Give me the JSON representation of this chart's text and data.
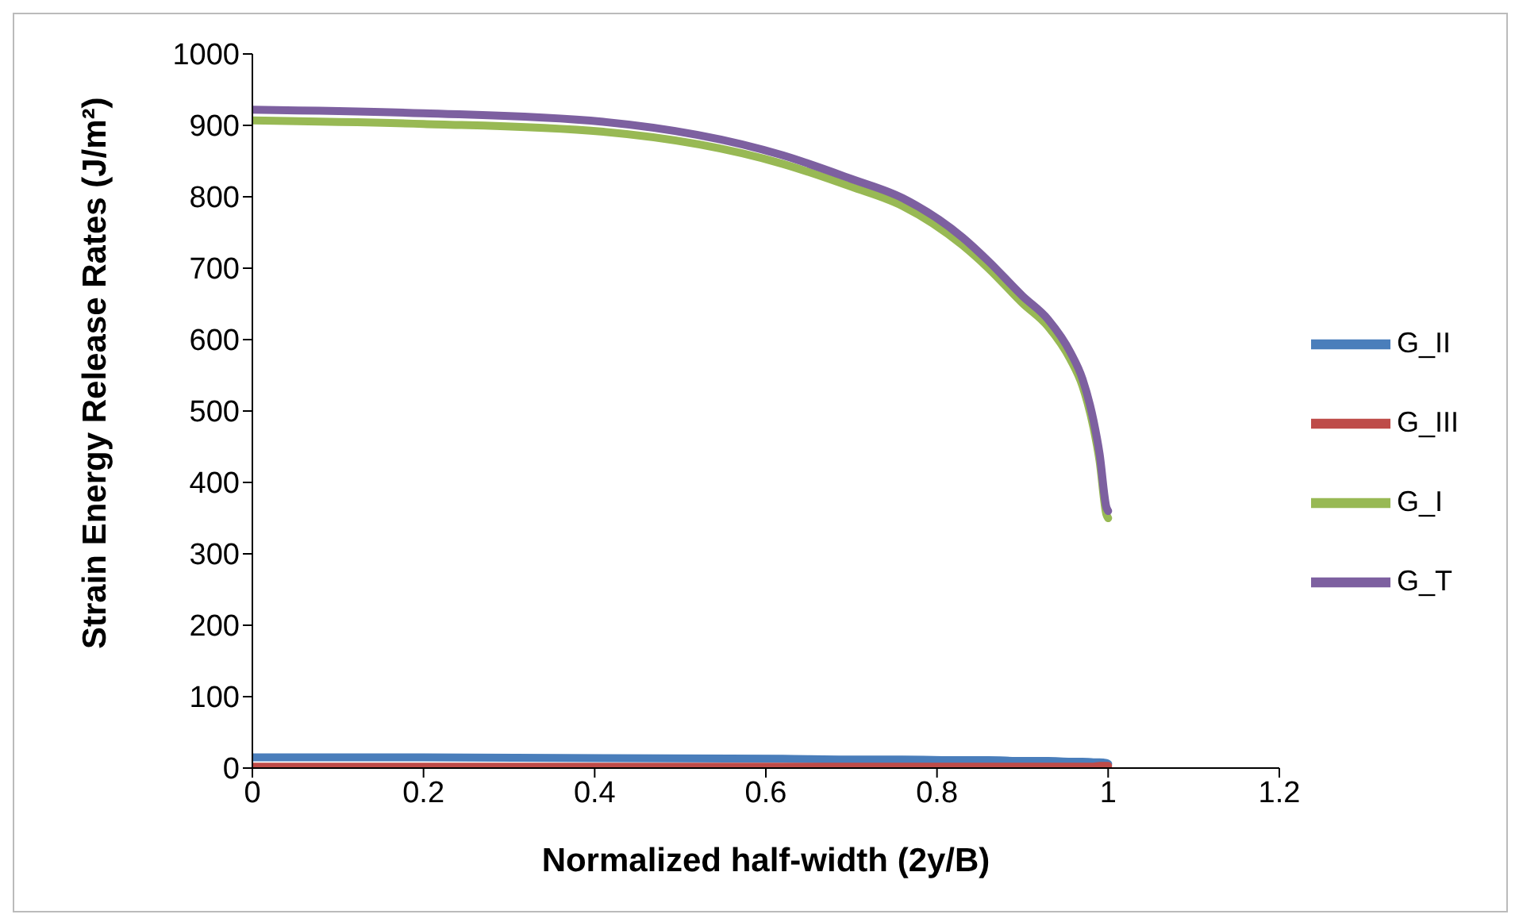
{
  "chart_data": {
    "type": "line",
    "xlabel": "Normalized half-width (2y/B)",
    "ylabel": "Strain Energy Release Rates (J/m²)",
    "x": [
      0,
      0.2,
      0.41,
      0.62,
      0.7,
      0.76,
      0.83,
      0.86,
      0.9,
      0.93,
      0.956,
      0.97,
      0.983,
      0.99,
      0.998,
      1
    ],
    "series": [
      {
        "name": "G_II",
        "color": "#4a7ebb",
        "values": [
          15,
          15,
          14,
          13,
          12,
          12,
          11,
          11,
          10,
          10,
          9,
          9,
          8,
          8,
          7,
          6
        ]
      },
      {
        "name": "G_III",
        "color": "#be4b48",
        "values": [
          2,
          2,
          2,
          2,
          2,
          2,
          2,
          2,
          2,
          2,
          2,
          2,
          2,
          3,
          3,
          3
        ]
      },
      {
        "name": "G_I",
        "color": "#98b954",
        "values": [
          907,
          902,
          891,
          846,
          814,
          787,
          732,
          700,
          651,
          618,
          572,
          535,
          476,
          430,
          355,
          350
        ]
      },
      {
        "name": "G_T",
        "color": "#7d60a0",
        "values": [
          922,
          917,
          905,
          858,
          825,
          798,
          743,
          710,
          661,
          628,
          582,
          545,
          486,
          440,
          365,
          360
        ]
      }
    ],
    "xlim": [
      0,
      1.2
    ],
    "xticks": [
      0,
      0.2,
      0.4,
      0.6,
      0.8,
      1,
      1.2
    ],
    "ylim": [
      0,
      1000
    ],
    "yticks": [
      0,
      100,
      200,
      300,
      400,
      500,
      600,
      700,
      800,
      900,
      1000
    ],
    "grid": false,
    "legend": "right",
    "marker": "none",
    "line_style": "solid"
  }
}
